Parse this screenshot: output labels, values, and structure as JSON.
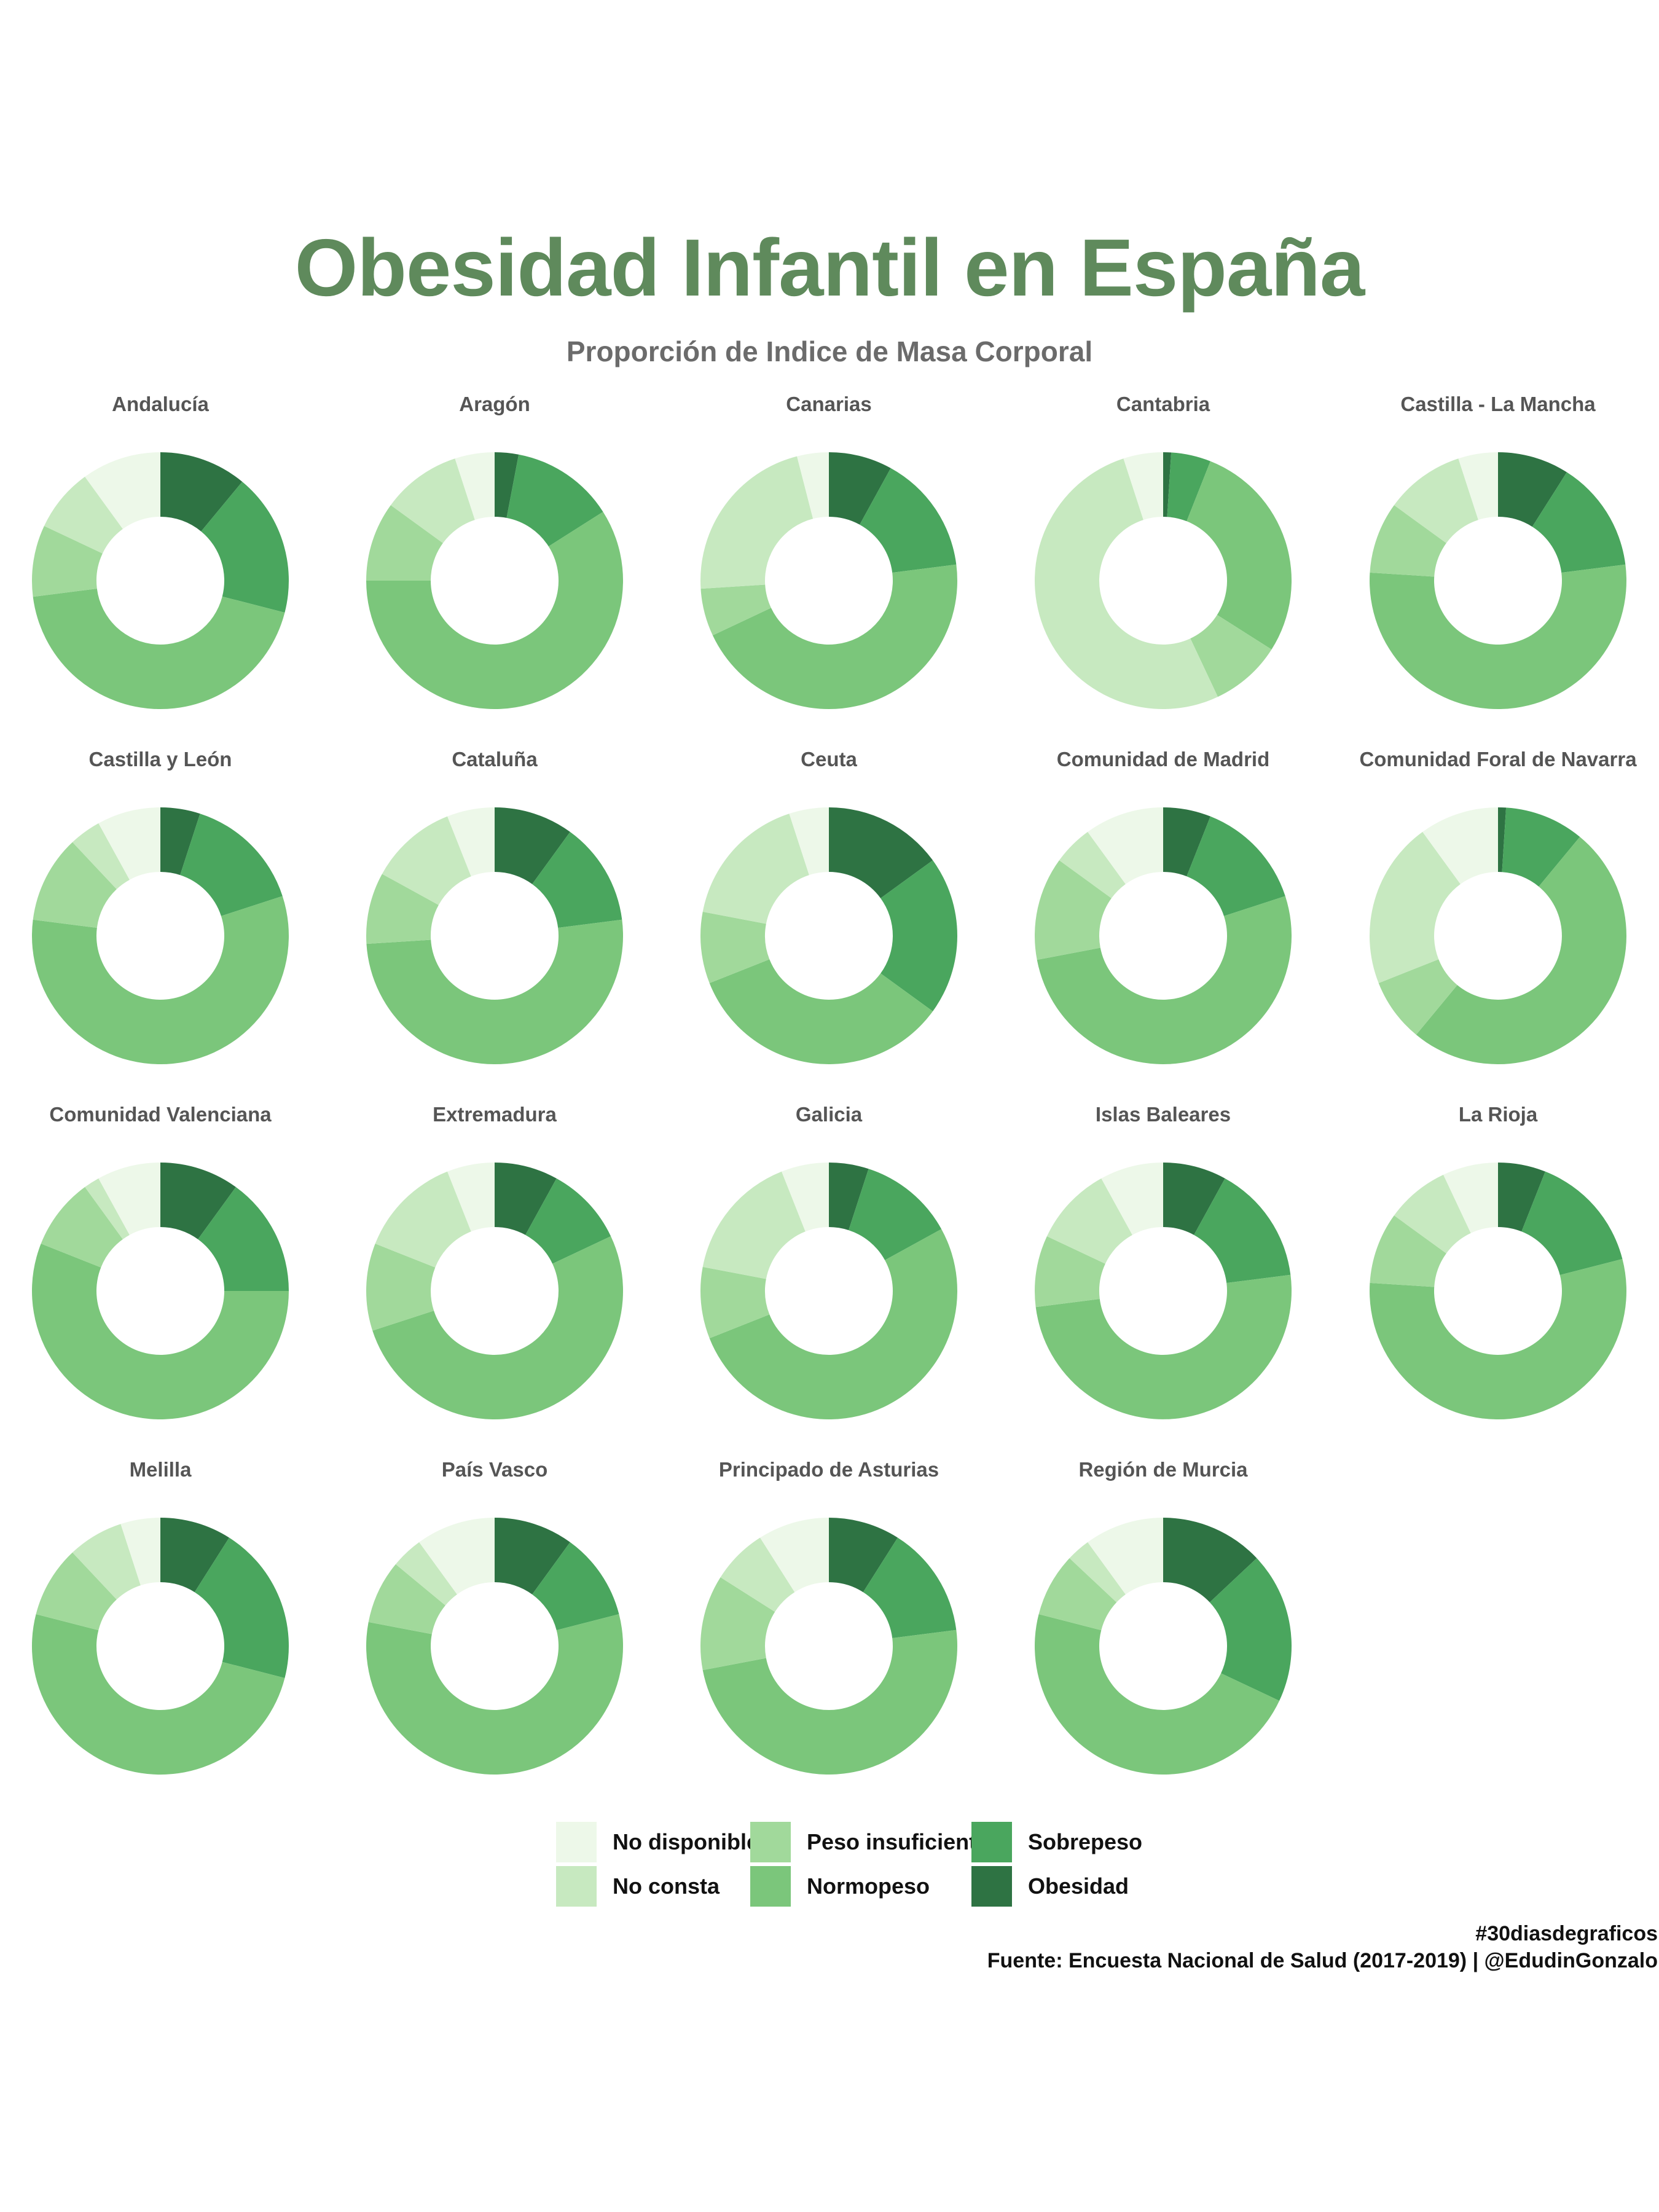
{
  "title": "Obesidad Infantil en España",
  "subtitle": "Proporción de Indice de Masa Corporal",
  "caption": {
    "line1": "#30diasdegraficos",
    "line2": "Fuente: Encuesta Nacional de Salud (2017-2019) | @EdudinGonzalo"
  },
  "legend": [
    {
      "label": "No disponible",
      "color": "#edf8e9"
    },
    {
      "label": "No consta",
      "color": "#c7e9c0"
    },
    {
      "label": "Peso insuficiente",
      "color": "#a1d99b"
    },
    {
      "label": "Normopeso",
      "color": "#7bc67b"
    },
    {
      "label": "Sobrepeso",
      "color": "#4aa65e"
    },
    {
      "label": "Obesidad",
      "color": "#2e7343"
    }
  ],
  "chart_data": {
    "type": "pie",
    "donut": true,
    "title": "Obesidad Infantil en España",
    "subtitle": "Proporción de Indice de Masa Corporal",
    "categories": [
      "Obesidad",
      "Sobrepeso",
      "Normopeso",
      "Peso insuficiente",
      "No consta",
      "No disponible"
    ],
    "colors": [
      "#2e7343",
      "#4aa65e",
      "#7bc67b",
      "#a1d99b",
      "#c7e9c0",
      "#edf8e9"
    ],
    "legend_position": "bottom",
    "units": "percent",
    "panels": [
      {
        "region": "Andalucía",
        "values": [
          11,
          18,
          44,
          9,
          8,
          10
        ]
      },
      {
        "region": "Aragón",
        "values": [
          3,
          13,
          59,
          10,
          10,
          5
        ]
      },
      {
        "region": "Canarias",
        "values": [
          8,
          15,
          45,
          6,
          22,
          4
        ]
      },
      {
        "region": "Cantabria",
        "values": [
          1,
          5,
          28,
          9,
          52,
          5
        ]
      },
      {
        "region": "Castilla - La Mancha",
        "values": [
          9,
          14,
          53,
          9,
          10,
          5
        ]
      },
      {
        "region": "Castilla y León",
        "values": [
          5,
          15,
          57,
          11,
          4,
          8
        ]
      },
      {
        "region": "Cataluña",
        "values": [
          10,
          13,
          51,
          9,
          11,
          6
        ]
      },
      {
        "region": "Ceuta",
        "values": [
          15,
          20,
          34,
          9,
          17,
          5
        ]
      },
      {
        "region": "Comunidad de Madrid",
        "values": [
          6,
          14,
          52,
          13,
          5,
          10
        ]
      },
      {
        "region": "Comunidad Foral de Navarra",
        "values": [
          1,
          10,
          50,
          8,
          21,
          10
        ]
      },
      {
        "region": "Comunidad Valenciana",
        "values": [
          10,
          15,
          56,
          9,
          2,
          8
        ]
      },
      {
        "region": "Extremadura",
        "values": [
          8,
          10,
          52,
          11,
          13,
          6
        ]
      },
      {
        "region": "Galicia",
        "values": [
          5,
          12,
          52,
          9,
          16,
          6
        ]
      },
      {
        "region": "Islas Baleares",
        "values": [
          8,
          15,
          50,
          9,
          10,
          8
        ]
      },
      {
        "region": "La Rioja",
        "values": [
          6,
          15,
          55,
          9,
          8,
          7
        ]
      },
      {
        "region": "Melilla",
        "values": [
          9,
          20,
          50,
          9,
          7,
          5
        ]
      },
      {
        "region": "País Vasco",
        "values": [
          10,
          11,
          57,
          8,
          4,
          10
        ]
      },
      {
        "region": "Principado de Asturias",
        "values": [
          9,
          14,
          49,
          12,
          7,
          9
        ]
      },
      {
        "region": "Región de Murcia",
        "values": [
          13,
          19,
          47,
          8,
          3,
          10
        ]
      }
    ]
  }
}
